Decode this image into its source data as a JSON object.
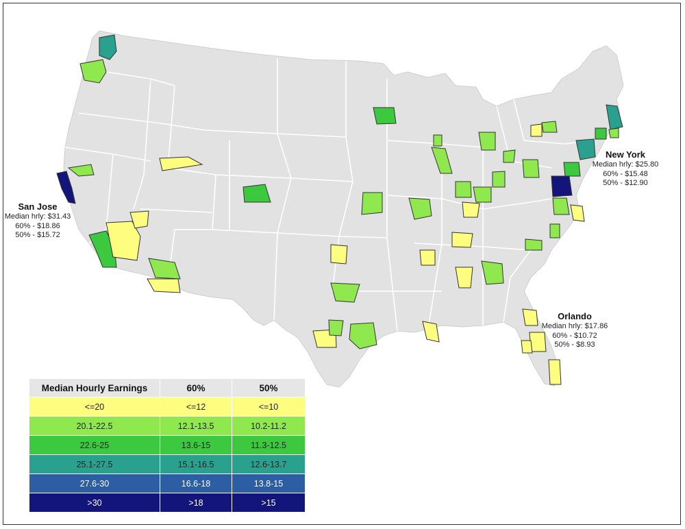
{
  "map": {
    "base_fill": "#e2e2e2",
    "border_color": "#ffffff",
    "metro_outline": "#333333"
  },
  "callouts": {
    "san_jose": {
      "name": "San Jose",
      "median": "Median hrly: $31.43",
      "p60": "60% -  $18.86",
      "p50": "50% - $15.72"
    },
    "new_york": {
      "name": "New York",
      "median": "Median hrly: $25.80",
      "p60": "60% -  $15.48",
      "p50": "50% -  $12.90"
    },
    "orlando": {
      "name": "Orlando",
      "median": "Median hrly: $17.86",
      "p60": "60% -  $10.72",
      "p50": "50% -  $8.93"
    }
  },
  "legend": {
    "headers": [
      "Median Hourly Earnings",
      "60%",
      "50%"
    ],
    "rows": [
      {
        "median": "<=20",
        "p60": "<=12",
        "p50": "<=10",
        "color": "#fdfd80",
        "text_color": "#222222"
      },
      {
        "median": "20.1-22.5",
        "p60": "12.1-13.5",
        "p50": "10.2-11.2",
        "color": "#8fe84d",
        "text_color": "#222222"
      },
      {
        "median": "22.6-25",
        "p60": "13.6-15",
        "p50": "11.3-12.5",
        "color": "#3cc83f",
        "text_color": "#222222"
      },
      {
        "median": "25.1-27.5",
        "p60": "15.1-16.5",
        "p50": "12.6-13.7",
        "color": "#2aa18e",
        "text_color": "#222222"
      },
      {
        "median": "27.6-30",
        "p60": "16.6-18",
        "p50": "13.8-15",
        "color": "#2d5da3",
        "text_color": "#ffffff"
      },
      {
        "median": ">30",
        "p60": ">18",
        "p50": ">15",
        "color": "#14157a",
        "text_color": "#ffffff"
      }
    ]
  }
}
